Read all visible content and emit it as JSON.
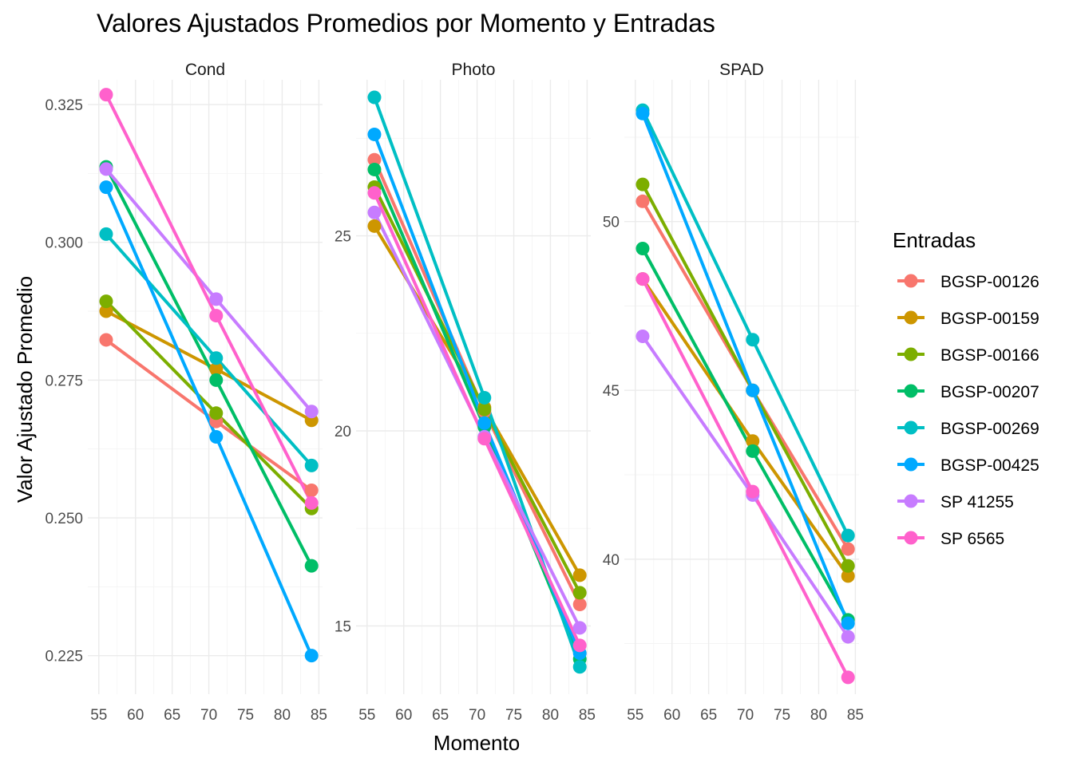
{
  "chart_data": {
    "type": "line",
    "title": "Valores Ajustados Promedios por Momento y Entradas",
    "xlabel": "Momento",
    "ylabel": "Valor Ajustado Promedio",
    "x": [
      56,
      71,
      84
    ],
    "x_ticks": [
      55,
      60,
      65,
      70,
      75,
      80,
      85
    ],
    "xlim": [
      53.5,
      85.5
    ],
    "legend": {
      "title": "Entradas",
      "position": "right"
    },
    "grid": true,
    "series_styles": [
      {
        "name": "BGSP-00126",
        "color": "#F8766D"
      },
      {
        "name": "BGSP-00159",
        "color": "#CD9600"
      },
      {
        "name": "BGSP-00166",
        "color": "#7CAE00"
      },
      {
        "name": "BGSP-00207",
        "color": "#00BE67"
      },
      {
        "name": "BGSP-00269",
        "color": "#00BFC4"
      },
      {
        "name": "BGSP-00425",
        "color": "#00A9FF"
      },
      {
        "name": "SP 41255",
        "color": "#C77CFF"
      },
      {
        "name": "SP 6565",
        "color": "#FF61CC"
      }
    ],
    "panels": [
      {
        "name": "Cond",
        "ylim": [
          0.218,
          0.3295
        ],
        "y_ticks": [
          0.225,
          0.25,
          0.275,
          0.3,
          0.325
        ],
        "y_tick_labels": [
          "0.225",
          "0.250",
          "0.275",
          "0.300",
          "0.325"
        ],
        "series": [
          {
            "name": "BGSP-00126",
            "values": [
              0.2823,
              0.2675,
              0.255
            ]
          },
          {
            "name": "BGSP-00159",
            "values": [
              0.2875,
              0.277,
              0.2677
            ]
          },
          {
            "name": "BGSP-00166",
            "values": [
              0.2893,
              0.269,
              0.2517
            ]
          },
          {
            "name": "BGSP-00207",
            "values": [
              0.3137,
              0.275,
              0.2413
            ]
          },
          {
            "name": "BGSP-00269",
            "values": [
              0.3015,
              0.279,
              0.2595
            ]
          },
          {
            "name": "BGSP-00425",
            "values": [
              0.31,
              0.2647,
              0.225
            ]
          },
          {
            "name": "SP 41255",
            "values": [
              0.3133,
              0.2897,
              0.2693
            ]
          },
          {
            "name": "SP 6565",
            "values": [
              0.3268,
              0.2867,
              0.2527
            ]
          }
        ]
      },
      {
        "name": "Photo",
        "ylim": [
          13.25,
          29.0
        ],
        "y_ticks": [
          15,
          20,
          25
        ],
        "y_tick_labels": [
          "15",
          "20",
          "25"
        ],
        "series": [
          {
            "name": "BGSP-00126",
            "values": [
              26.95,
              20.5,
              15.55
            ]
          },
          {
            "name": "BGSP-00159",
            "values": [
              25.25,
              20.6,
              16.3
            ]
          },
          {
            "name": "BGSP-00166",
            "values": [
              26.25,
              20.55,
              15.85
            ]
          },
          {
            "name": "BGSP-00207",
            "values": [
              26.7,
              20.1,
              14.15
            ]
          },
          {
            "name": "BGSP-00269",
            "values": [
              28.55,
              20.85,
              13.95
            ]
          },
          {
            "name": "BGSP-00425",
            "values": [
              27.6,
              20.2,
              14.3
            ]
          },
          {
            "name": "SP 41255",
            "values": [
              25.6,
              19.85,
              14.95
            ]
          },
          {
            "name": "SP 6565",
            "values": [
              26.1,
              19.8,
              14.5
            ]
          }
        ]
      },
      {
        "name": "SPAD",
        "ylim": [
          36.0,
          54.2
        ],
        "y_ticks": [
          40,
          45,
          50
        ],
        "y_tick_labels": [
          "40",
          "45",
          "50"
        ],
        "series": [
          {
            "name": "BGSP-00126",
            "values": [
              50.6,
              45.0,
              40.3
            ]
          },
          {
            "name": "BGSP-00159",
            "values": [
              48.3,
              43.5,
              39.5
            ]
          },
          {
            "name": "BGSP-00166",
            "values": [
              51.1,
              45.0,
              39.8
            ]
          },
          {
            "name": "BGSP-00207",
            "values": [
              49.2,
              43.2,
              38.2
            ]
          },
          {
            "name": "BGSP-00269",
            "values": [
              53.3,
              46.5,
              40.7
            ]
          },
          {
            "name": "BGSP-00425",
            "values": [
              53.2,
              45.0,
              38.1
            ]
          },
          {
            "name": "SP 41255",
            "values": [
              46.6,
              41.9,
              37.7
            ]
          },
          {
            "name": "SP 6565",
            "values": [
              48.3,
              42.0,
              36.5
            ]
          }
        ]
      }
    ]
  }
}
